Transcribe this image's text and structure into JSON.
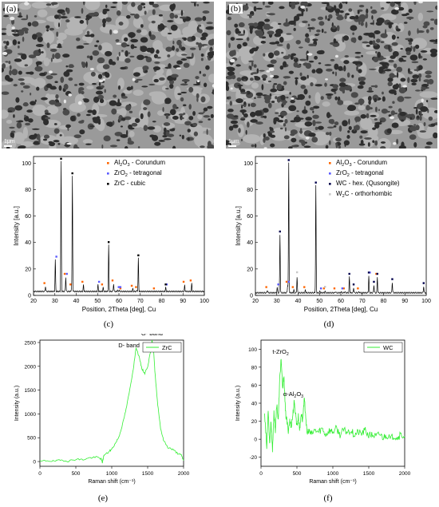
{
  "sem_images": [
    {
      "label": "(a)",
      "scale_label": "1μm"
    },
    {
      "label": "(b)",
      "scale_label": "1μm"
    }
  ],
  "captions": [
    "(c)",
    "(d)",
    "(e)",
    "(f)"
  ],
  "chart_data": [
    {
      "type": "line",
      "panel": "(c)",
      "xlabel": "Position, 2Theta [deg], Cu",
      "ylabel": "Intensity [a.u.]",
      "xlim": [
        20,
        100
      ],
      "ylim": [
        0,
        105
      ],
      "xticks": [
        20,
        30,
        40,
        50,
        60,
        70,
        80,
        90,
        100
      ],
      "yticks": [
        0,
        20,
        40,
        60,
        80,
        100
      ],
      "line_color": "#000000",
      "background_level": 3,
      "peaks": [
        {
          "x": 25.6,
          "y": 7
        },
        {
          "x": 30.2,
          "y": 27
        },
        {
          "x": 32.9,
          "y": 101
        },
        {
          "x": 35.1,
          "y": 14
        },
        {
          "x": 37.8,
          "y": 6
        },
        {
          "x": 38.2,
          "y": 90
        },
        {
          "x": 43.4,
          "y": 8
        },
        {
          "x": 50.2,
          "y": 8
        },
        {
          "x": 52.6,
          "y": 6
        },
        {
          "x": 55.2,
          "y": 38
        },
        {
          "x": 57.5,
          "y": 9
        },
        {
          "x": 59.4,
          "y": 4
        },
        {
          "x": 60.2,
          "y": 4
        },
        {
          "x": 61.2,
          "y": 3
        },
        {
          "x": 66.5,
          "y": 5
        },
        {
          "x": 68.5,
          "y": 4
        },
        {
          "x": 69.1,
          "y": 28
        },
        {
          "x": 76.9,
          "y": 3
        },
        {
          "x": 81.9,
          "y": 6
        },
        {
          "x": 90.8,
          "y": 8
        },
        {
          "x": 94.1,
          "y": 9
        }
      ],
      "series": [
        {
          "name": "Al2O3 - Corundum",
          "color": "#ff6600",
          "markers": [
            25.6,
            35.1,
            37.8,
            43.4,
            52.6,
            57.5,
            61.2,
            66.5,
            68.5,
            76.9,
            90.8,
            94.1
          ]
        },
        {
          "name": "ZrO2 - tetragonal",
          "color": "#5a5aff",
          "markers": [
            30.2,
            35.1,
            50.2,
            59.4,
            60.2,
            81.9
          ]
        },
        {
          "name": "ZrC - cubic",
          "color": "#000000",
          "markers": [
            32.9,
            38.2,
            55.2,
            69.1,
            81.9
          ]
        }
      ],
      "legend": [
        {
          "pre": "Al",
          "sub1": "2",
          "mid": "O",
          "sub2": "3",
          "post": " - Corundum",
          "color": "#ff6600"
        },
        {
          "pre": "ZrO",
          "sub1": "2",
          "mid": "",
          "sub2": "",
          "post": " - tetragonal",
          "color": "#5a5aff"
        },
        {
          "pre": "ZrC - cubic",
          "sub1": "",
          "mid": "",
          "sub2": "",
          "post": "",
          "color": "#000000"
        }
      ],
      "legend_position": "top-right"
    },
    {
      "type": "line",
      "panel": "(d)",
      "xlabel": "Position, 2Theta [deg], Cu",
      "ylabel": "Intensity [a.u.]",
      "xlim": [
        20,
        100
      ],
      "ylim": [
        0,
        105
      ],
      "xticks": [
        20,
        30,
        40,
        50,
        60,
        70,
        80,
        90,
        100
      ],
      "yticks": [
        0,
        20,
        40,
        60,
        80,
        100
      ],
      "line_color": "#000000",
      "background_level": 2,
      "peaks": [
        {
          "x": 25.6,
          "y": 4
        },
        {
          "x": 30.2,
          "y": 6
        },
        {
          "x": 31.5,
          "y": 46
        },
        {
          "x": 35.1,
          "y": 8
        },
        {
          "x": 35.6,
          "y": 100
        },
        {
          "x": 38.0,
          "y": 4
        },
        {
          "x": 39.5,
          "y": 14
        },
        {
          "x": 43.4,
          "y": 4
        },
        {
          "x": 48.3,
          "y": 83
        },
        {
          "x": 50.2,
          "y": 3
        },
        {
          "x": 52.6,
          "y": 3
        },
        {
          "x": 57.5,
          "y": 3
        },
        {
          "x": 60.2,
          "y": 3
        },
        {
          "x": 61.9,
          "y": 3
        },
        {
          "x": 64.0,
          "y": 14
        },
        {
          "x": 66.0,
          "y": 6
        },
        {
          "x": 68.5,
          "y": 3
        },
        {
          "x": 73.1,
          "y": 15
        },
        {
          "x": 75.5,
          "y": 8
        },
        {
          "x": 77.1,
          "y": 14
        },
        {
          "x": 84.1,
          "y": 10
        },
        {
          "x": 98.8,
          "y": 7
        }
      ],
      "series": [
        {
          "name": "Al2O3 - Corundum",
          "color": "#ff6600",
          "markers": [
            25.6,
            35.1,
            38.0,
            43.4,
            52.6,
            57.5,
            61.9,
            68.5,
            77.1
          ]
        },
        {
          "name": "ZrO2 - tetragonal",
          "color": "#5a5aff",
          "markers": [
            30.2,
            35.1,
            50.2,
            60.2,
            73.1
          ]
        },
        {
          "name": "WC - hex. (Qusongite)",
          "color": "#00004d",
          "markers": [
            31.5,
            35.6,
            48.3,
            64.0,
            66.0,
            73.1,
            75.5,
            77.1,
            84.1,
            98.8
          ]
        },
        {
          "name": "W2C - orthorhombic",
          "color": "#c8c8c8",
          "markers": [
            39.5,
            52.6
          ]
        }
      ],
      "legend": [
        {
          "pre": "Al",
          "sub1": "2",
          "mid": "O",
          "sub2": "3",
          "post": " - Corundum",
          "color": "#ff6600"
        },
        {
          "pre": "ZrO",
          "sub1": "2",
          "mid": "",
          "sub2": "",
          "post": " - tetragonal",
          "color": "#5a5aff"
        },
        {
          "pre": "WC - hex. (Qusongite)",
          "sub1": "",
          "mid": "",
          "sub2": "",
          "post": "",
          "color": "#00004d"
        },
        {
          "pre": "W",
          "sub1": "2",
          "mid": "C - orthorhombic",
          "sub2": "",
          "post": "",
          "color": "#c8c8c8"
        }
      ],
      "legend_position": "top-right"
    },
    {
      "type": "line",
      "panel": "(e)",
      "xlabel": "Raman shift (cm⁻¹)",
      "ylabel": "Intensity (a.u.)",
      "xlim": [
        0,
        2000
      ],
      "ylim": [
        -100,
        2550
      ],
      "xticks": [
        0,
        500,
        1000,
        1500,
        2000
      ],
      "yticks": [
        0,
        500,
        1000,
        1500,
        2000,
        2500
      ],
      "line_color": "#33ee33",
      "legend": [
        {
          "pre": "ZrC",
          "sub1": "",
          "mid": "",
          "sub2": "",
          "post": "",
          "color": "#33ee33"
        }
      ],
      "legend_position": "top-right",
      "annotations": [
        {
          "text": "D- band",
          "x": 1240,
          "y": 2400
        },
        {
          "text": "G- band",
          "x": 1560,
          "y": 2650
        }
      ],
      "points": [
        [
          0,
          0
        ],
        [
          100,
          20
        ],
        [
          200,
          5
        ],
        [
          300,
          30
        ],
        [
          400,
          10
        ],
        [
          500,
          50
        ],
        [
          600,
          40
        ],
        [
          700,
          80
        ],
        [
          800,
          90
        ],
        [
          850,
          60
        ],
        [
          870,
          -20
        ],
        [
          890,
          130
        ],
        [
          950,
          190
        ],
        [
          1000,
          260
        ],
        [
          1050,
          380
        ],
        [
          1100,
          520
        ],
        [
          1150,
          780
        ],
        [
          1200,
          1100
        ],
        [
          1250,
          1500
        ],
        [
          1300,
          1950
        ],
        [
          1340,
          2400
        ],
        [
          1380,
          2200
        ],
        [
          1420,
          1950
        ],
        [
          1460,
          1850
        ],
        [
          1500,
          2000
        ],
        [
          1540,
          2300
        ],
        [
          1560,
          2560
        ],
        [
          1580,
          2400
        ],
        [
          1600,
          1900
        ],
        [
          1640,
          1200
        ],
        [
          1680,
          700
        ],
        [
          1720,
          450
        ],
        [
          1780,
          300
        ],
        [
          1850,
          250
        ],
        [
          1920,
          170
        ],
        [
          1970,
          130
        ],
        [
          2000,
          20
        ]
      ]
    },
    {
      "type": "line",
      "panel": "(f)",
      "xlabel": "Raman shift (cm⁻¹)",
      "ylabel": "Intensity (a.u.)",
      "xlim": [
        0,
        2000
      ],
      "ylim": [
        -30,
        110
      ],
      "xticks": [
        0,
        500,
        1000,
        1500,
        2000
      ],
      "yticks": [
        -20,
        0,
        20,
        40,
        60,
        80,
        100
      ],
      "line_color": "#33ee33",
      "legend": [
        {
          "pre": "WC",
          "sub1": "",
          "mid": "",
          "sub2": "",
          "post": "",
          "color": "#33ee33"
        }
      ],
      "legend_position": "top-right",
      "annotations": [
        {
          "pre": "t-ZrO",
          "sub": "2",
          "x": 160,
          "y": 95
        },
        {
          "pre": "α-Al",
          "sub": "2",
          "mid": "O",
          "sub2": "3",
          "x": 310,
          "y": 48
        }
      ],
      "points": [
        [
          50,
          30
        ],
        [
          80,
          -10
        ],
        [
          100,
          35
        ],
        [
          120,
          -5
        ],
        [
          140,
          20
        ],
        [
          160,
          -15
        ],
        [
          180,
          30
        ],
        [
          200,
          10
        ],
        [
          220,
          40
        ],
        [
          240,
          20
        ],
        [
          260,
          65
        ],
        [
          280,
          90
        ],
        [
          300,
          55
        ],
        [
          320,
          70
        ],
        [
          340,
          30
        ],
        [
          360,
          20
        ],
        [
          380,
          10
        ],
        [
          400,
          20
        ],
        [
          420,
          15
        ],
        [
          440,
          25
        ],
        [
          460,
          40
        ],
        [
          480,
          30
        ],
        [
          500,
          15
        ],
        [
          520,
          25
        ],
        [
          540,
          10
        ],
        [
          560,
          30
        ],
        [
          580,
          20
        ],
        [
          600,
          45
        ],
        [
          620,
          30
        ],
        [
          640,
          5
        ],
        [
          660,
          10
        ],
        [
          700,
          5
        ],
        [
          750,
          10
        ],
        [
          800,
          8
        ],
        [
          850,
          12
        ],
        [
          900,
          5
        ],
        [
          950,
          10
        ],
        [
          1000,
          8
        ],
        [
          1050,
          12
        ],
        [
          1100,
          5
        ],
        [
          1150,
          10
        ],
        [
          1200,
          8
        ],
        [
          1250,
          10
        ],
        [
          1300,
          5
        ],
        [
          1350,
          8
        ],
        [
          1400,
          6
        ],
        [
          1450,
          10
        ],
        [
          1500,
          4
        ],
        [
          1550,
          5
        ],
        [
          1600,
          3
        ],
        [
          1650,
          6
        ],
        [
          1700,
          2
        ],
        [
          1750,
          5
        ],
        [
          1800,
          0
        ],
        [
          1850,
          4
        ],
        [
          1900,
          2
        ],
        [
          1950,
          5
        ],
        [
          2000,
          3
        ]
      ]
    }
  ]
}
